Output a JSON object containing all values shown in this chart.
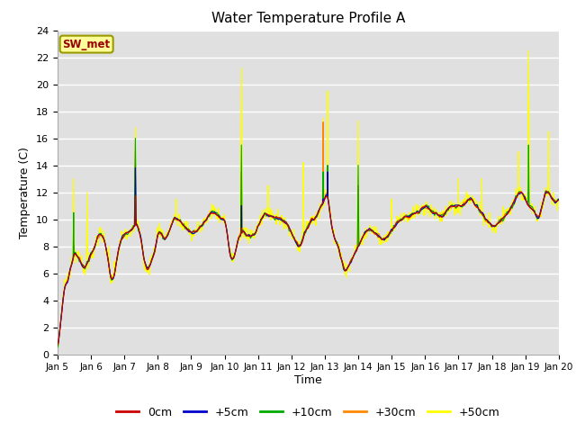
{
  "title": "Water Temperature Profile A",
  "xlabel": "Time",
  "ylabel": "Temperature (C)",
  "ylim": [
    0,
    24
  ],
  "x_tick_labels": [
    "Jan 5",
    "Jan 6",
    "Jan 7",
    "Jan 8",
    "Jan 9",
    "Jan 10",
    "Jan 11",
    "Jan 12",
    "Jan 13",
    "Jan 14",
    "Jan 15",
    "Jan 16",
    "Jan 17",
    "Jan 18",
    "Jan 19",
    "Jan 20"
  ],
  "colors": {
    "0cm": "#cc0000",
    "+5cm": "#0000cc",
    "+10cm": "#00aa00",
    "+30cm": "#ff8800",
    "+50cm": "#ffff00"
  },
  "bg_axes": "#e0e0e0",
  "bg_fig": "#ffffff",
  "annotation_text": "SW_met",
  "annotation_color": "#990000",
  "annotation_bg": "#ffff99",
  "annotation_border": "#999900"
}
